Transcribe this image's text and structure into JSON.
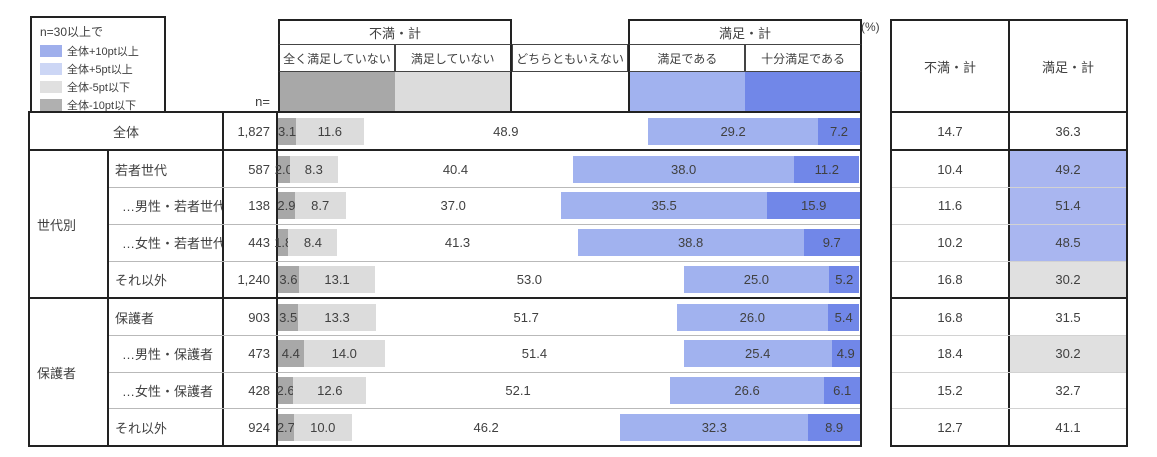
{
  "legend": {
    "title": "n=30以上で",
    "items": [
      {
        "label": "全体+10pt以上",
        "color": "#9fafec"
      },
      {
        "label": "全体+5pt以上",
        "color": "#ccd6f5"
      },
      {
        "label": "全体-5pt以下",
        "color": "#e0e0e0"
      },
      {
        "label": "全体-10pt以下",
        "color": "#b0b0b0"
      }
    ]
  },
  "header": {
    "n_label": "n=",
    "percent_label": "(%)",
    "fuman_group_label": "不満・計",
    "manzoku_group_label": "満足・計",
    "categories": [
      {
        "label": "全く満足していない",
        "color": "#a8a8a8"
      },
      {
        "label": "満足していない",
        "color": "#dcdcdc"
      },
      {
        "label": "どちらともいえない",
        "color": ""
      },
      {
        "label": "満足である",
        "color": "#a1b2ef"
      },
      {
        "label": "十分満足である",
        "color": "#7187e8"
      }
    ]
  },
  "summary_columns": [
    "不満・計",
    "満足・計"
  ],
  "colors": {
    "seg_notatall": "#a8a8a8",
    "seg_notsatisfied": "#dcdcdc",
    "seg_neutral": "",
    "seg_satisfied": "#a1b2ef",
    "seg_verysatisfied": "#7187e8",
    "highlight_blue": "#a9b6f0",
    "highlight_gray": "#e0e0e0"
  },
  "row_groups": [
    {
      "label": "",
      "merged": true,
      "rows": [
        {
          "label": "全体",
          "indent": false,
          "n": "1,827",
          "segments": [
            "3.1",
            "11.6",
            "48.9",
            "29.2",
            "7.2"
          ],
          "fuman": "14.7",
          "manzoku": "36.3",
          "manzoku_bg": ""
        }
      ]
    },
    {
      "label": "世代別",
      "merged": false,
      "rows": [
        {
          "label": "若者世代",
          "indent": false,
          "n": "587",
          "segments": [
            "2.0",
            "8.3",
            "40.4",
            "38.0",
            "11.2"
          ],
          "fuman": "10.4",
          "manzoku": "49.2",
          "manzoku_bg": "blue"
        },
        {
          "label": "…男性・若者世代",
          "indent": true,
          "n": "138",
          "segments": [
            "2.9",
            "8.7",
            "37.0",
            "35.5",
            "15.9"
          ],
          "fuman": "11.6",
          "manzoku": "51.4",
          "manzoku_bg": "blue"
        },
        {
          "label": "…女性・若者世代",
          "indent": true,
          "n": "443",
          "segments": [
            "1.8",
            "8.4",
            "41.3",
            "38.8",
            "9.7"
          ],
          "fuman": "10.2",
          "manzoku": "48.5",
          "manzoku_bg": "blue"
        },
        {
          "label": "それ以外",
          "indent": false,
          "n": "1,240",
          "segments": [
            "3.6",
            "13.1",
            "53.0",
            "25.0",
            "5.2"
          ],
          "fuman": "16.8",
          "manzoku": "30.2",
          "manzoku_bg": "gray"
        }
      ]
    },
    {
      "label": "保護者",
      "merged": false,
      "rows": [
        {
          "label": "保護者",
          "indent": false,
          "n": "903",
          "segments": [
            "3.5",
            "13.3",
            "51.7",
            "26.0",
            "5.4"
          ],
          "fuman": "16.8",
          "manzoku": "31.5",
          "manzoku_bg": ""
        },
        {
          "label": "…男性・保護者",
          "indent": true,
          "n": "473",
          "segments": [
            "4.4",
            "14.0",
            "51.4",
            "25.4",
            "4.9"
          ],
          "fuman": "18.4",
          "manzoku": "30.2",
          "manzoku_bg": "gray"
        },
        {
          "label": "…女性・保護者",
          "indent": true,
          "n": "428",
          "segments": [
            "2.6",
            "12.6",
            "52.1",
            "26.6",
            "6.1"
          ],
          "fuman": "15.2",
          "manzoku": "32.7",
          "manzoku_bg": ""
        },
        {
          "label": "それ以外",
          "indent": false,
          "n": "924",
          "segments": [
            "2.7",
            "10.0",
            "46.2",
            "32.3",
            "8.9"
          ],
          "fuman": "12.7",
          "manzoku": "41.1",
          "manzoku_bg": ""
        }
      ]
    }
  ],
  "chart_data": {
    "type": "bar",
    "orientation": "horizontal-stacked",
    "unit": "%",
    "xlim": [
      0,
      100
    ],
    "categories": [
      "全体",
      "若者世代",
      "…男性・若者世代",
      "…女性・若者世代",
      "それ以外",
      "保護者",
      "…男性・保護者",
      "…女性・保護者",
      "それ以外"
    ],
    "group_labels": [
      "世代別",
      "保護者"
    ],
    "n": [
      1827,
      587,
      138,
      443,
      1240,
      903,
      473,
      428,
      924
    ],
    "series": [
      {
        "name": "全く満足していない",
        "values": [
          3.1,
          2.0,
          2.9,
          1.8,
          3.6,
          3.5,
          4.4,
          2.6,
          2.7
        ]
      },
      {
        "name": "満足していない",
        "values": [
          11.6,
          8.3,
          8.7,
          8.4,
          13.1,
          13.3,
          14.0,
          12.6,
          10.0
        ]
      },
      {
        "name": "どちらともいえない",
        "values": [
          48.9,
          40.4,
          37.0,
          41.3,
          53.0,
          51.7,
          51.4,
          52.1,
          46.2
        ]
      },
      {
        "name": "満足である",
        "values": [
          29.2,
          38.0,
          35.5,
          38.8,
          25.0,
          26.0,
          25.4,
          26.6,
          32.3
        ]
      },
      {
        "name": "十分満足である",
        "values": [
          7.2,
          11.2,
          15.9,
          9.7,
          5.2,
          5.4,
          4.9,
          6.1,
          8.9
        ]
      }
    ],
    "totals": {
      "不満・計": [
        14.7,
        10.4,
        11.6,
        10.2,
        16.8,
        16.8,
        18.4,
        15.2,
        12.7
      ],
      "満足・計": [
        36.3,
        49.2,
        51.4,
        48.5,
        30.2,
        31.5,
        30.2,
        32.7,
        41.1
      ]
    },
    "legend_position": "top-left"
  }
}
